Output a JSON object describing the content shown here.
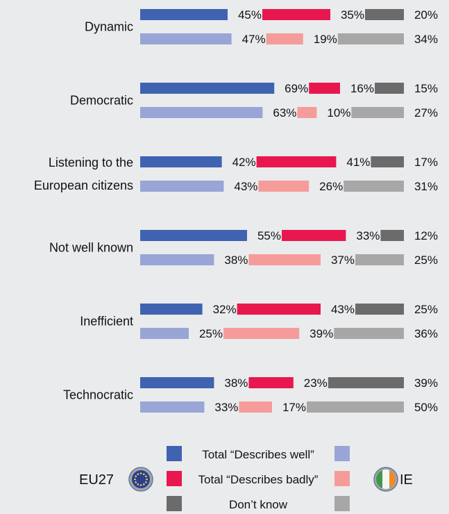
{
  "chart_data": {
    "type": "bar",
    "orientation": "horizontal-stacked-100",
    "categories": [
      [
        "Dynamic"
      ],
      [
        "Democratic"
      ],
      [
        "Listening to the",
        "European citizens"
      ],
      [
        "Not well known"
      ],
      [
        "Inefficient"
      ],
      [
        "Technocratic"
      ]
    ],
    "groups": [
      {
        "name": "EU27",
        "series": [
          {
            "name": "Total “Describes well”",
            "values": [
              45,
              69,
              42,
              55,
              32,
              38
            ]
          },
          {
            "name": "Total “Describes badly”",
            "values": [
              35,
              16,
              41,
              33,
              43,
              23
            ]
          },
          {
            "name": "Don’t know",
            "values": [
              20,
              15,
              17,
              12,
              25,
              39
            ]
          }
        ]
      },
      {
        "name": "IE",
        "series": [
          {
            "name": "Total “Describes well”",
            "values": [
              47,
              63,
              43,
              38,
              25,
              33
            ]
          },
          {
            "name": "Total “Describes badly”",
            "values": [
              19,
              10,
              26,
              37,
              39,
              17
            ]
          },
          {
            "name": "Don’t know",
            "values": [
              34,
              27,
              31,
              25,
              36,
              50
            ]
          }
        ]
      }
    ],
    "value_suffix": "%",
    "colors": {
      "EU27": [
        "#3f63b1",
        "#e8174f",
        "#6b6b6b"
      ],
      "IE": [
        "#98a5d6",
        "#f59c9b",
        "#a7a7a7"
      ]
    },
    "legend": {
      "placement": "bottom-center",
      "labels": [
        "Total “Describes well”",
        "Total “Describes badly”",
        "Don’t know"
      ],
      "left_label": "EU27",
      "right_label": "IE",
      "left_icon": "eu-flag-icon",
      "right_icon": "ireland-flag-icon"
    },
    "background": "#eaebed"
  }
}
